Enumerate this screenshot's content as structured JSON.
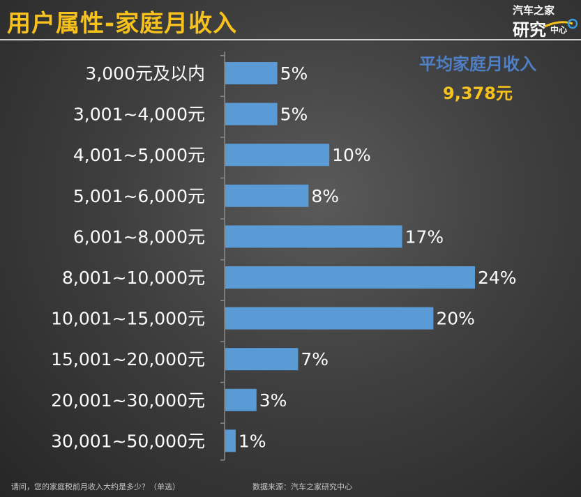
{
  "header": {
    "title": "用户属性-家庭月收入",
    "logo_line1": "汽车之家",
    "logo_line2": "研究",
    "logo_line3": "中心"
  },
  "average": {
    "label": "平均家庭月收入",
    "value": "9,378元"
  },
  "footer": {
    "question": "请问，您的家庭税前月收入大约是多少？（单选）",
    "source": "数据来源：汽车之家研究中心"
  },
  "colors": {
    "bar": "#5b9bd5",
    "title": "#f7c21b",
    "average_label": "#4f7fc4",
    "average_value": "#f7c21b",
    "text": "#ffffff"
  },
  "chart_data": {
    "type": "bar",
    "orientation": "horizontal",
    "categories": [
      "3,000元及以内",
      "3,001~4,000元",
      "4,001~5,000元",
      "5,001~6,000元",
      "6,001~8,000元",
      "8,001~10,000元",
      "10,001~15,000元",
      "15,001~20,000元",
      "20,001~30,000元",
      "30,001~50,000元"
    ],
    "values": [
      5,
      5,
      10,
      8,
      17,
      24,
      20,
      7,
      3,
      1
    ],
    "value_labels": [
      "5%",
      "5%",
      "10%",
      "8%",
      "17%",
      "24%",
      "20%",
      "7%",
      "3%",
      "1%"
    ],
    "xlim": [
      0,
      25
    ],
    "grid": false,
    "legend": "none"
  }
}
